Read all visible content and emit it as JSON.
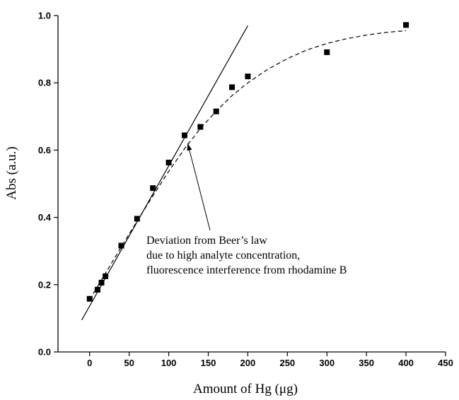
{
  "chart_data": {
    "type": "scatter",
    "title": "",
    "xlabel": "Amount of Hg (μg)",
    "ylabel": "Abs (a.u.)",
    "xlim": [
      -40,
      450
    ],
    "ylim": [
      0.0,
      1.0
    ],
    "xticks": [
      0,
      50,
      100,
      150,
      200,
      250,
      300,
      350,
      400,
      450
    ],
    "xtick_labels": [
      "0",
      "50",
      "100",
      "150",
      "200",
      "250",
      "300",
      "350",
      "400",
      "450"
    ],
    "yticks": [
      0.0,
      0.2,
      0.4,
      0.6,
      0.8,
      1.0
    ],
    "ytick_labels": [
      "0.0",
      "0.2",
      "0.4",
      "0.6",
      "0.8",
      "1.0"
    ],
    "grid": false,
    "series": [
      {
        "marker": "square",
        "color": "#000000",
        "x": [
          0,
          10,
          15,
          20,
          40,
          60,
          80,
          100,
          120,
          140,
          160,
          180,
          200,
          300,
          400
        ],
        "y": [
          0.158,
          0.185,
          0.206,
          0.225,
          0.316,
          0.396,
          0.487,
          0.563,
          0.644,
          0.669,
          0.715,
          0.787,
          0.819,
          0.891,
          0.972
        ]
      }
    ],
    "lines": [
      {
        "style": "solid",
        "color": "#000000",
        "x": [
          -10,
          200
        ],
        "y": [
          0.095,
          0.97
        ]
      },
      {
        "style": "dashed",
        "color": "#000000",
        "x": [
          0,
          20,
          40,
          60,
          80,
          100,
          120,
          140,
          160,
          180,
          200,
          225,
          250,
          275,
          300,
          325,
          350,
          375,
          400
        ],
        "y": [
          0.155,
          0.234,
          0.312,
          0.389,
          0.464,
          0.537,
          0.604,
          0.664,
          0.716,
          0.762,
          0.8,
          0.84,
          0.872,
          0.898,
          0.917,
          0.931,
          0.942,
          0.95,
          0.955
        ]
      }
    ],
    "annotation": {
      "lines": [
        "Deviation from Beer’s law",
        "due to high analyte concentration,",
        "fluorescence interference from rhodamine B"
      ],
      "arrow_to": {
        "x": 124,
        "y": 0.62
      }
    }
  }
}
